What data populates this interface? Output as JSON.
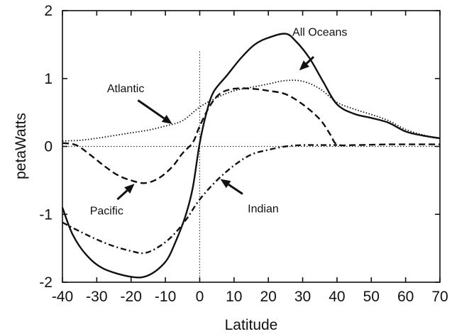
{
  "chart_data": {
    "type": "line",
    "title": "",
    "xlabel": "Latitude",
    "ylabel": "petaWatts",
    "xlim": [
      -40,
      70
    ],
    "ylim": [
      -2,
      2
    ],
    "x_ticks": [
      -40,
      -30,
      -20,
      -10,
      0,
      10,
      20,
      30,
      40,
      50,
      60,
      70
    ],
    "y_ticks": [
      -2,
      -1,
      0,
      1,
      2
    ],
    "grid": false,
    "reference_lines": [
      {
        "axis": "y",
        "value": 0,
        "style": "dotted"
      },
      {
        "axis": "x",
        "value": 0,
        "from": -2,
        "to": 1.4,
        "style": "dotted"
      }
    ],
    "series": [
      {
        "name": "All Oceans",
        "style": "solid",
        "points": [
          [
            -40,
            -0.9
          ],
          [
            -37,
            -1.3
          ],
          [
            -33,
            -1.6
          ],
          [
            -28,
            -1.8
          ],
          [
            -20,
            -1.92
          ],
          [
            -15,
            -1.9
          ],
          [
            -10,
            -1.7
          ],
          [
            -7,
            -1.4
          ],
          [
            -4,
            -1.0
          ],
          [
            -2,
            -0.6
          ],
          [
            0,
            0.05
          ],
          [
            2,
            0.5
          ],
          [
            4,
            0.8
          ],
          [
            8,
            1.05
          ],
          [
            12,
            1.3
          ],
          [
            16,
            1.5
          ],
          [
            20,
            1.6
          ],
          [
            25,
            1.66
          ],
          [
            28,
            1.55
          ],
          [
            32,
            1.3
          ],
          [
            36,
            0.95
          ],
          [
            40,
            0.62
          ],
          [
            45,
            0.48
          ],
          [
            50,
            0.42
          ],
          [
            55,
            0.35
          ],
          [
            60,
            0.22
          ],
          [
            65,
            0.16
          ],
          [
            70,
            0.12
          ]
        ]
      },
      {
        "name": "Atlantic",
        "style": "dotted",
        "points": [
          [
            -40,
            0.08
          ],
          [
            -35,
            0.09
          ],
          [
            -30,
            0.12
          ],
          [
            -25,
            0.16
          ],
          [
            -20,
            0.2
          ],
          [
            -15,
            0.24
          ],
          [
            -10,
            0.3
          ],
          [
            -5,
            0.38
          ],
          [
            0,
            0.58
          ],
          [
            5,
            0.72
          ],
          [
            10,
            0.82
          ],
          [
            15,
            0.87
          ],
          [
            20,
            0.92
          ],
          [
            25,
            0.97
          ],
          [
            30,
            0.96
          ],
          [
            35,
            0.85
          ],
          [
            40,
            0.65
          ],
          [
            45,
            0.55
          ],
          [
            50,
            0.47
          ],
          [
            55,
            0.38
          ],
          [
            60,
            0.25
          ],
          [
            65,
            0.17
          ],
          [
            70,
            0.12
          ]
        ]
      },
      {
        "name": "Pacific",
        "style": "dashed",
        "points": [
          [
            -40,
            0.05
          ],
          [
            -36,
            0.02
          ],
          [
            -32,
            -0.12
          ],
          [
            -28,
            -0.28
          ],
          [
            -24,
            -0.42
          ],
          [
            -20,
            -0.5
          ],
          [
            -16,
            -0.54
          ],
          [
            -12,
            -0.47
          ],
          [
            -8,
            -0.3
          ],
          [
            -5,
            -0.1
          ],
          [
            -2,
            0.06
          ],
          [
            0,
            0.3
          ],
          [
            3,
            0.6
          ],
          [
            6,
            0.78
          ],
          [
            10,
            0.85
          ],
          [
            15,
            0.85
          ],
          [
            20,
            0.82
          ],
          [
            25,
            0.77
          ],
          [
            30,
            0.62
          ],
          [
            35,
            0.4
          ],
          [
            38,
            0.18
          ],
          [
            40,
            0.03
          ],
          [
            45,
            0.02
          ],
          [
            55,
            0.03
          ],
          [
            65,
            0.03
          ],
          [
            70,
            0.03
          ]
        ]
      },
      {
        "name": "Indian",
        "style": "dash-dot",
        "points": [
          [
            -40,
            -1.12
          ],
          [
            -35,
            -1.25
          ],
          [
            -30,
            -1.37
          ],
          [
            -25,
            -1.47
          ],
          [
            -20,
            -1.54
          ],
          [
            -16,
            -1.57
          ],
          [
            -12,
            -1.48
          ],
          [
            -8,
            -1.32
          ],
          [
            -4,
            -1.08
          ],
          [
            0,
            -0.78
          ],
          [
            5,
            -0.5
          ],
          [
            10,
            -0.28
          ],
          [
            15,
            -0.12
          ],
          [
            20,
            -0.05
          ],
          [
            25,
            0.0
          ],
          [
            30,
            0.02
          ],
          [
            35,
            0.02
          ],
          [
            40,
            0.02
          ]
        ]
      }
    ],
    "annotations": [
      {
        "text": "All Oceans",
        "label_at": [
          27,
          1.63
        ],
        "arrow_from": [
          33.2,
          1.32
        ],
        "arrow_to": [
          29,
          1.12
        ]
      },
      {
        "text": "Atlantic",
        "label_at": [
          -27,
          0.8
        ],
        "arrow_from": [
          -18,
          0.68
        ],
        "arrow_to": [
          -8,
          0.33
        ]
      },
      {
        "text": "Pacific",
        "label_at": [
          -32,
          -1.0
        ],
        "arrow_from": [
          -24,
          -0.78
        ],
        "arrow_to": [
          -19,
          -0.55
        ]
      },
      {
        "text": "Indian",
        "label_at": [
          14,
          -0.97
        ],
        "arrow_from": [
          12.5,
          -0.7
        ],
        "arrow_to": [
          6,
          -0.48
        ]
      }
    ]
  }
}
